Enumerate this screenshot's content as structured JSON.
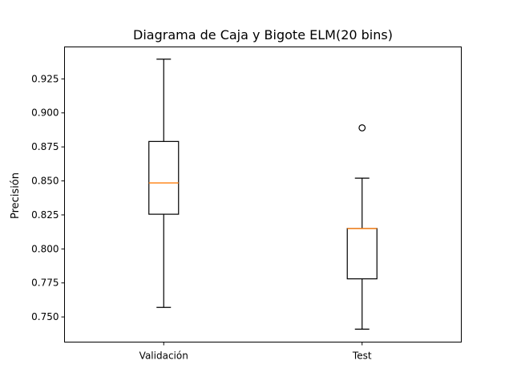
{
  "chart_data": {
    "type": "boxplot",
    "title": "Diagrama de Caja y Bigote ELM(20 bins)",
    "xlabel": "",
    "ylabel": "Precisión",
    "ylim": [
      0.7315,
      0.9485
    ],
    "yticks": [
      0.75,
      0.775,
      0.8,
      0.825,
      0.85,
      0.875,
      0.9,
      0.925
    ],
    "ytick_labels": [
      "0.750",
      "0.775",
      "0.800",
      "0.825",
      "0.850",
      "0.875",
      "0.900",
      "0.925"
    ],
    "grid": false,
    "categories": [
      "Validación",
      "Test"
    ],
    "boxes": [
      {
        "label": "Validación",
        "whisker_low": 0.757,
        "q1": 0.8255,
        "median": 0.8485,
        "q3": 0.879,
        "whisker_high": 0.9395,
        "outliers": []
      },
      {
        "label": "Test",
        "whisker_low": 0.741,
        "q1": 0.778,
        "median": 0.815,
        "q3": 0.815,
        "whisker_high": 0.852,
        "outliers": [
          0.889
        ]
      }
    ],
    "colors": {
      "box": "#000000",
      "median": "#ff7f0e",
      "axes": "#000000"
    }
  }
}
